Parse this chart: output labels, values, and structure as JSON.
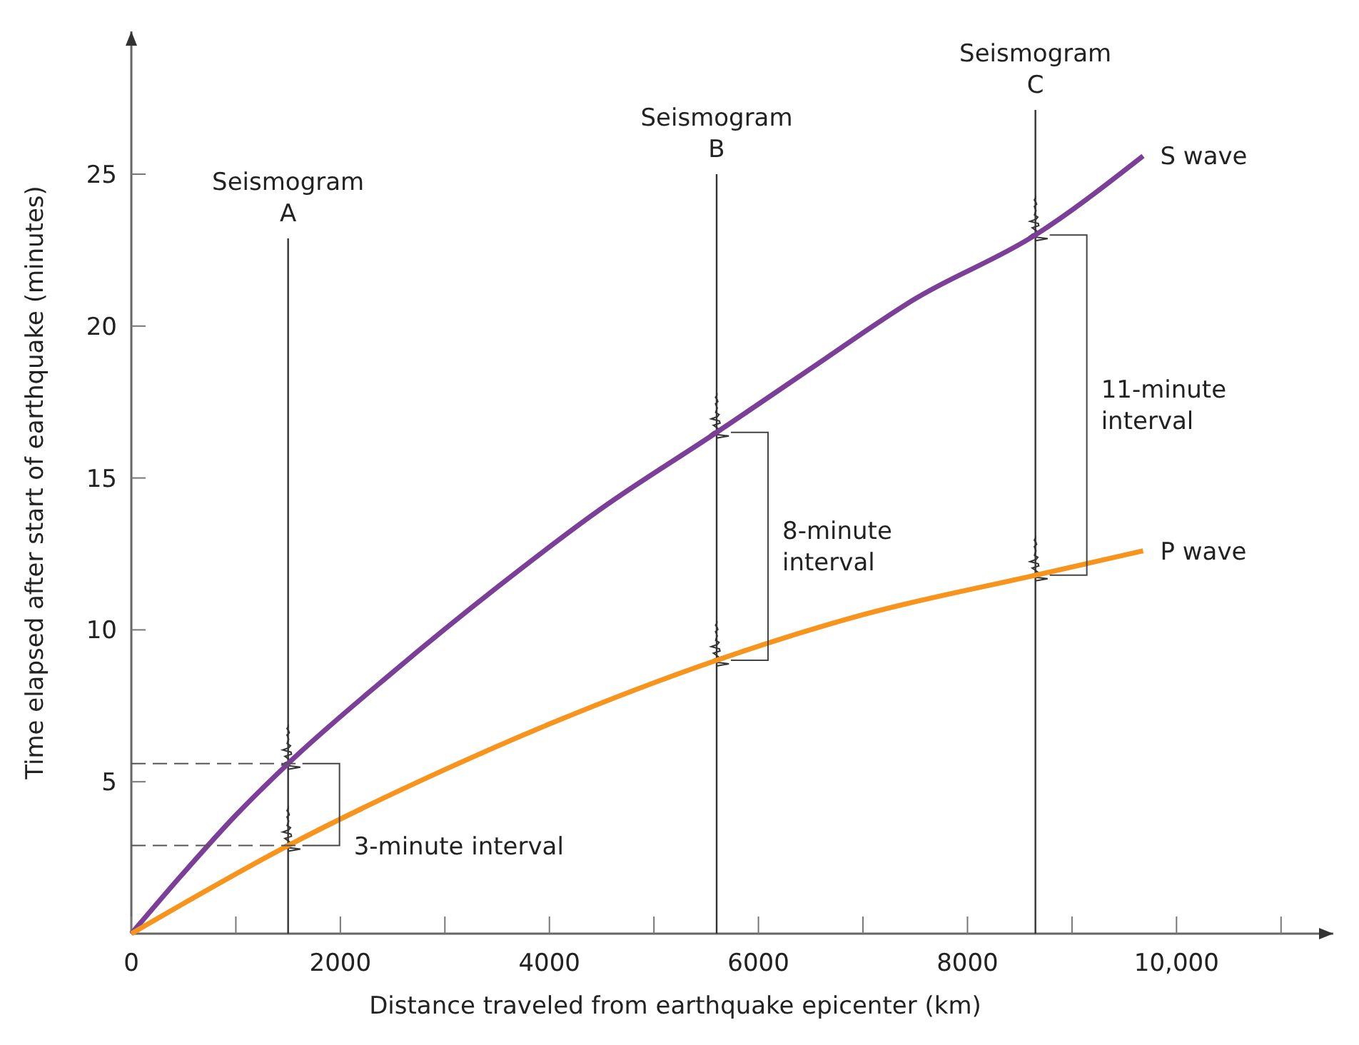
{
  "chart_data": {
    "type": "line",
    "xlabel": "Distance traveled from earthquake epicenter (km)",
    "ylabel": "Time elapsed after start of earthquake (minutes)",
    "xlim": [
      0,
      11500
    ],
    "ylim": [
      0,
      29.7
    ],
    "xticks": [
      0,
      {
        "value": 1000,
        "label": null
      },
      {
        "value": 2000,
        "label": "2000"
      },
      {
        "value": 3000,
        "label": null
      },
      4000,
      {
        "value": 5000,
        "label": null
      },
      6000,
      {
        "value": 7000,
        "label": null
      },
      8000,
      {
        "value": 9000,
        "label": null
      },
      {
        "value": 10000,
        "label": "10,000"
      },
      {
        "value": 11000,
        "label": null
      }
    ],
    "yticks": [
      5,
      10,
      15,
      20,
      25
    ],
    "grid": false,
    "legend": false,
    "marker": "none",
    "line_style": "solid",
    "series": [
      {
        "name": "S wave",
        "color": "#7b3f98",
        "x": [
          0,
          500,
          1000,
          1500,
          2500,
          3500,
          4500,
          5600,
          6500,
          7500,
          8650,
          9680
        ],
        "values": [
          0,
          2.0,
          3.9,
          5.6,
          8.6,
          11.4,
          14.0,
          16.5,
          18.6,
          20.9,
          23.0,
          25.6
        ]
      },
      {
        "name": "P wave",
        "color": "#f7941d",
        "x": [
          0,
          1500,
          3000,
          4000,
          5600,
          7000,
          8650,
          9680
        ],
        "values": [
          0,
          2.9,
          5.4,
          6.9,
          9.0,
          10.5,
          11.8,
          12.6
        ]
      }
    ],
    "ref_lines": [
      {
        "axis": "x",
        "value": 1500,
        "label": "Seismogram A",
        "color": "#333333"
      },
      {
        "axis": "x",
        "value": 5600,
        "label": "Seismogram B",
        "color": "#333333"
      },
      {
        "axis": "x",
        "value": 8650,
        "label": "Seismogram C",
        "color": "#333333"
      }
    ],
    "annotations": [
      "3-minute interval",
      "8-minute interval",
      "11-minute interval"
    ]
  }
}
